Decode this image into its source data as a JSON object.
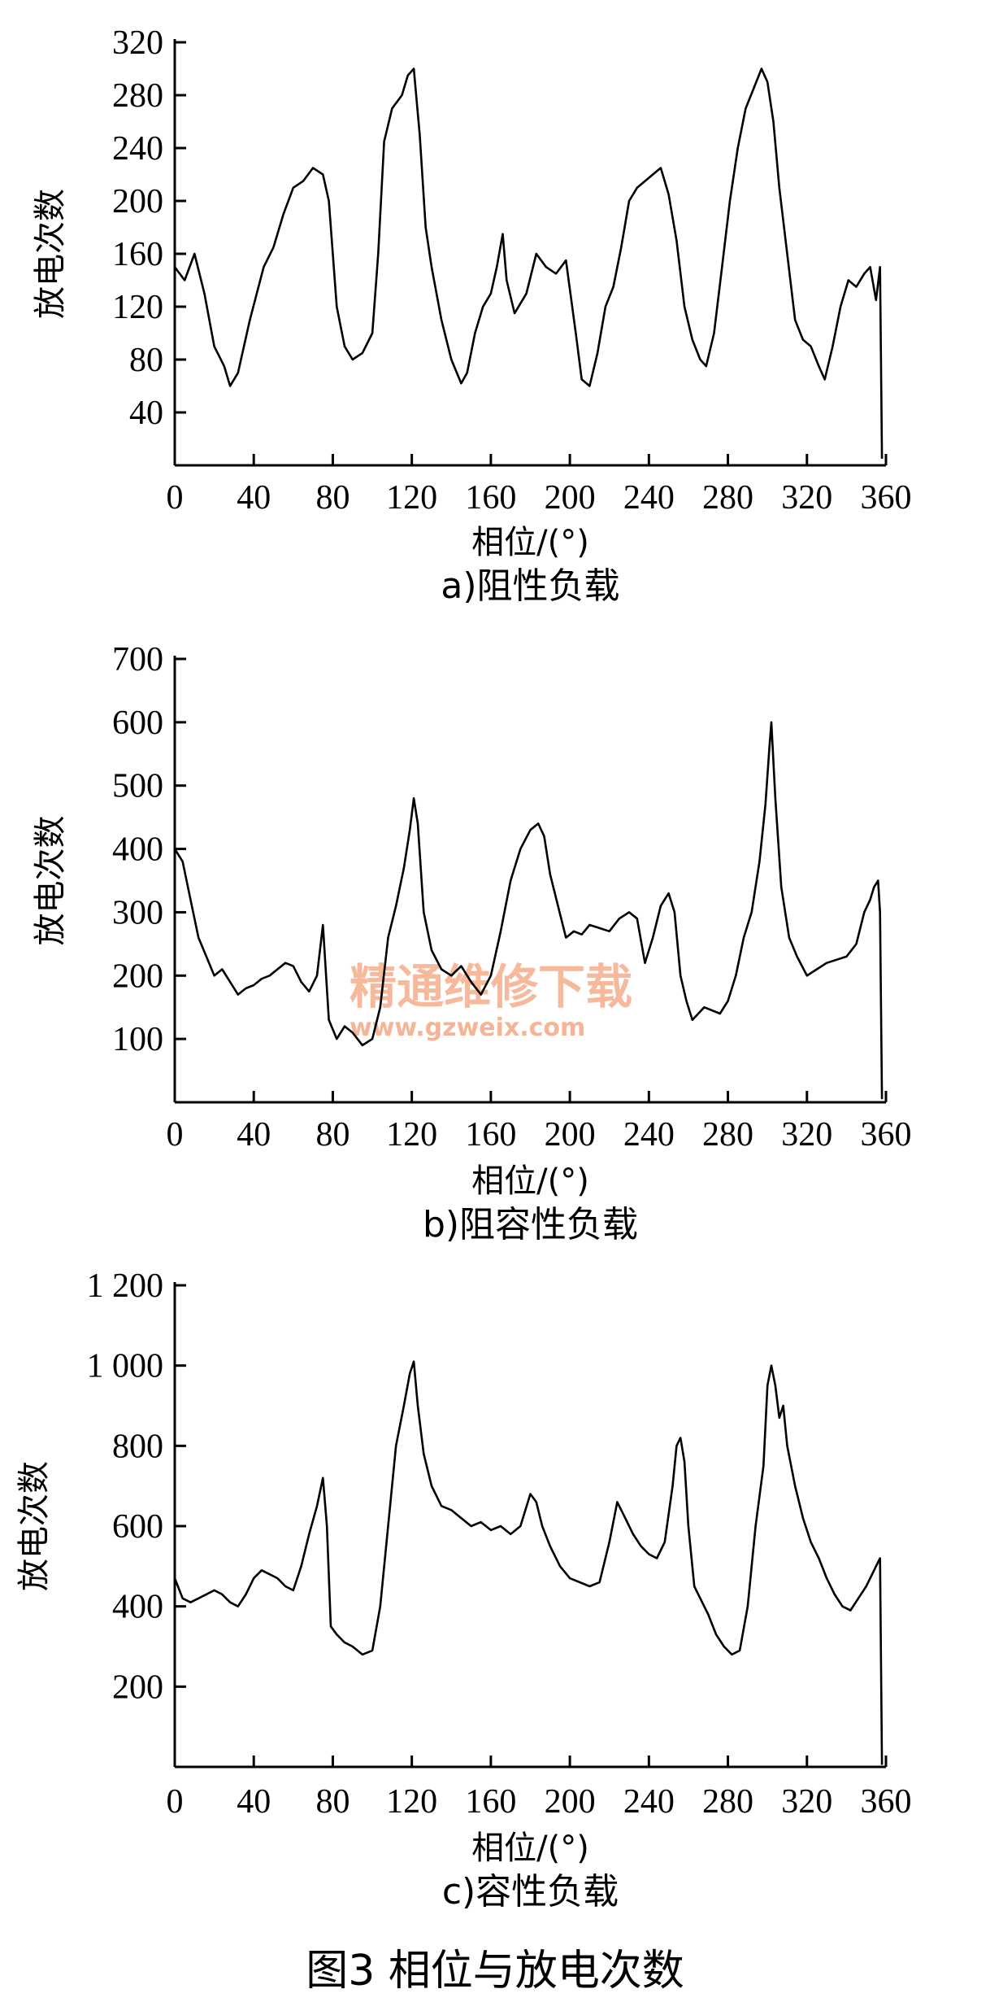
{
  "figure_caption": "图3  相位与放电次数",
  "watermark": {
    "text": "精通维修下载",
    "url": "www.gzweix.com",
    "color": "#f3a27c"
  },
  "chart_data": [
    {
      "type": "line",
      "caption": "a)阻性负载",
      "xlabel": "相位/(°)",
      "ylabel": "放电次数",
      "xlim": [
        0,
        360
      ],
      "ylim": [
        0,
        320
      ],
      "x_ticks": [
        0,
        40,
        80,
        120,
        160,
        200,
        240,
        280,
        320,
        360
      ],
      "x_tick_labels": [
        "0",
        "40",
        "80",
        "120",
        "160",
        "200",
        "240",
        "280",
        "320",
        "360"
      ],
      "y_ticks": [
        40,
        80,
        120,
        160,
        200,
        240,
        280,
        320
      ],
      "y_tick_labels": [
        "40",
        "80",
        "120",
        "160",
        "200",
        "240",
        "280",
        "320"
      ],
      "series": [
        {
          "x": [
            0,
            5,
            10,
            15,
            20,
            25,
            28,
            32,
            38,
            45,
            50,
            55,
            60,
            65,
            70,
            75,
            78,
            82,
            86,
            90,
            95,
            100,
            103,
            106,
            110,
            115,
            118,
            121,
            124,
            127,
            130,
            135,
            140,
            145,
            148,
            152,
            156,
            160,
            163,
            166,
            168,
            172,
            178,
            183,
            188,
            193,
            198,
            203,
            206,
            210,
            214,
            218,
            222,
            226,
            230,
            234,
            238,
            242,
            246,
            250,
            254,
            258,
            262,
            266,
            269,
            273,
            277,
            281,
            285,
            289,
            293,
            297,
            300,
            303,
            306,
            310,
            314,
            318,
            322,
            326,
            329,
            333,
            337,
            341,
            345,
            349,
            352,
            355,
            357,
            358
          ],
          "y": [
            150,
            140,
            160,
            130,
            90,
            75,
            60,
            70,
            110,
            150,
            165,
            190,
            210,
            215,
            225,
            220,
            200,
            120,
            90,
            80,
            85,
            100,
            160,
            245,
            270,
            280,
            295,
            300,
            250,
            180,
            150,
            110,
            80,
            62,
            70,
            100,
            120,
            130,
            150,
            175,
            140,
            115,
            130,
            160,
            150,
            145,
            155,
            100,
            65,
            60,
            85,
            120,
            135,
            165,
            200,
            210,
            215,
            220,
            225,
            205,
            170,
            120,
            95,
            80,
            75,
            100,
            150,
            200,
            240,
            270,
            285,
            300,
            290,
            260,
            210,
            160,
            110,
            95,
            90,
            75,
            65,
            90,
            120,
            140,
            135,
            145,
            150,
            125,
            150,
            5
          ]
        }
      ]
    },
    {
      "type": "line",
      "caption": "b)阻容性负载",
      "xlabel": "相位/(°)",
      "ylabel": "放电次数",
      "xlim": [
        0,
        360
      ],
      "ylim": [
        0,
        700
      ],
      "x_ticks": [
        0,
        40,
        80,
        120,
        160,
        200,
        240,
        280,
        320,
        360
      ],
      "x_tick_labels": [
        "0",
        "40",
        "80",
        "120",
        "160",
        "200",
        "240",
        "280",
        "320",
        "360"
      ],
      "y_ticks": [
        100,
        200,
        300,
        400,
        500,
        600,
        700
      ],
      "y_tick_labels": [
        "100",
        "200",
        "300",
        "400",
        "500",
        "600",
        "700"
      ],
      "series": [
        {
          "x": [
            0,
            4,
            8,
            12,
            16,
            20,
            24,
            28,
            32,
            36,
            40,
            44,
            48,
            52,
            56,
            60,
            64,
            68,
            72,
            75,
            78,
            82,
            86,
            90,
            95,
            100,
            104,
            108,
            112,
            116,
            119,
            121,
            123,
            126,
            130,
            135,
            140,
            145,
            150,
            155,
            160,
            165,
            170,
            175,
            180,
            184,
            187,
            190,
            194,
            198,
            202,
            206,
            210,
            215,
            220,
            225,
            230,
            234,
            238,
            242,
            246,
            250,
            253,
            256,
            259,
            262,
            265,
            268,
            272,
            276,
            280,
            284,
            288,
            292,
            296,
            299,
            301,
            302,
            304,
            307,
            311,
            315,
            320,
            325,
            330,
            335,
            340,
            345,
            349,
            352,
            354,
            356,
            357,
            358
          ],
          "y": [
            400,
            380,
            320,
            260,
            230,
            200,
            210,
            190,
            170,
            180,
            185,
            195,
            200,
            210,
            220,
            215,
            190,
            175,
            200,
            280,
            130,
            100,
            120,
            110,
            90,
            100,
            150,
            260,
            310,
            370,
            430,
            480,
            440,
            300,
            240,
            210,
            200,
            215,
            190,
            170,
            200,
            270,
            350,
            400,
            430,
            440,
            420,
            360,
            310,
            260,
            270,
            265,
            280,
            275,
            270,
            290,
            300,
            290,
            220,
            260,
            310,
            330,
            300,
            200,
            160,
            130,
            140,
            150,
            145,
            140,
            160,
            200,
            260,
            300,
            380,
            470,
            560,
            600,
            480,
            340,
            260,
            230,
            200,
            210,
            220,
            225,
            230,
            250,
            300,
            320,
            340,
            350,
            300,
            5
          ]
        }
      ]
    },
    {
      "type": "line",
      "caption": "c)容性负载",
      "xlabel": "相位/(°)",
      "ylabel": "放电次数",
      "xlim": [
        0,
        360
      ],
      "ylim": [
        0,
        1200
      ],
      "x_ticks": [
        0,
        40,
        80,
        120,
        160,
        200,
        240,
        280,
        320,
        360
      ],
      "x_tick_labels": [
        "0",
        "40",
        "80",
        "120",
        "160",
        "200",
        "240",
        "280",
        "320",
        "360"
      ],
      "y_ticks": [
        200,
        400,
        600,
        800,
        1000,
        1200
      ],
      "y_tick_labels": [
        "200",
        "400",
        "600",
        "800",
        "1 000",
        "1 200"
      ],
      "series": [
        {
          "x": [
            0,
            4,
            8,
            12,
            16,
            20,
            24,
            28,
            32,
            36,
            40,
            44,
            48,
            52,
            56,
            60,
            64,
            68,
            72,
            75,
            77,
            79,
            82,
            86,
            90,
            95,
            100,
            104,
            108,
            112,
            116,
            119,
            121,
            123,
            126,
            130,
            135,
            140,
            145,
            150,
            155,
            160,
            165,
            170,
            175,
            180,
            183,
            186,
            190,
            195,
            200,
            205,
            210,
            215,
            220,
            224,
            228,
            232,
            236,
            240,
            244,
            248,
            252,
            254,
            256,
            258,
            260,
            263,
            266,
            270,
            274,
            278,
            282,
            286,
            290,
            294,
            298,
            300,
            302,
            304,
            306,
            308,
            310,
            314,
            318,
            322,
            326,
            330,
            334,
            338,
            342,
            346,
            350,
            353,
            355,
            357,
            358
          ],
          "y": [
            470,
            420,
            410,
            420,
            430,
            440,
            430,
            410,
            400,
            430,
            470,
            490,
            480,
            470,
            450,
            440,
            500,
            580,
            650,
            720,
            600,
            350,
            330,
            310,
            300,
            280,
            290,
            400,
            600,
            800,
            900,
            980,
            1010,
            900,
            780,
            700,
            650,
            640,
            620,
            600,
            610,
            590,
            600,
            580,
            600,
            680,
            660,
            600,
            550,
            500,
            470,
            460,
            450,
            460,
            560,
            660,
            620,
            580,
            550,
            530,
            520,
            560,
            700,
            800,
            820,
            760,
            600,
            450,
            420,
            380,
            330,
            300,
            280,
            290,
            400,
            600,
            750,
            950,
            1000,
            950,
            870,
            900,
            800,
            700,
            620,
            560,
            520,
            470,
            430,
            400,
            390,
            420,
            450,
            480,
            500,
            520,
            5
          ]
        }
      ]
    }
  ]
}
